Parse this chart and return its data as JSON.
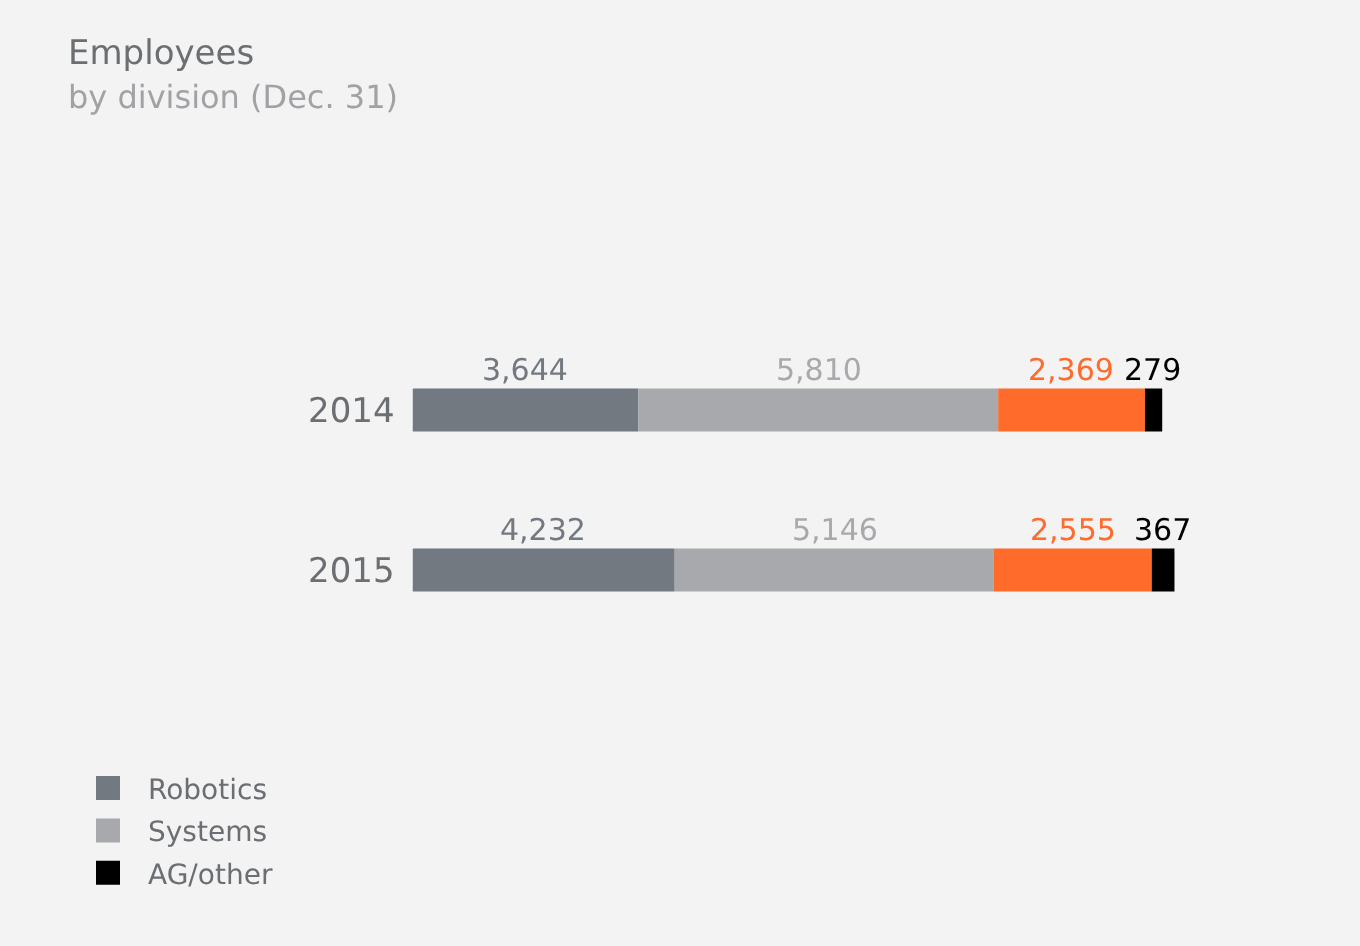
{
  "chart_data": {
    "type": "bar",
    "title": "Employees",
    "subtitle": "by division (Dec. 31)",
    "orientation": "horizontal",
    "stacked": true,
    "categories": [
      "2014",
      "2015"
    ],
    "series": [
      {
        "name": "Robotics",
        "color": "#737980",
        "values": [
          3644,
          4232
        ],
        "value_labels": [
          "3,644",
          "4,232"
        ]
      },
      {
        "name": "Systems",
        "color": "#a7a9ac",
        "values": [
          5810,
          5146
        ],
        "value_labels": [
          "5,810",
          "5,146"
        ]
      },
      {
        "color": "#ff6b2b",
        "values": [
          2369,
          2555
        ],
        "value_labels": [
          "2,369",
          "2,555"
        ]
      },
      {
        "name": "AG/other",
        "color": "#000000",
        "values": [
          279,
          367
        ],
        "value_labels": [
          "279",
          "367"
        ]
      }
    ],
    "legend": "bottom left",
    "grid": false,
    "tick_labels": "y"
  }
}
